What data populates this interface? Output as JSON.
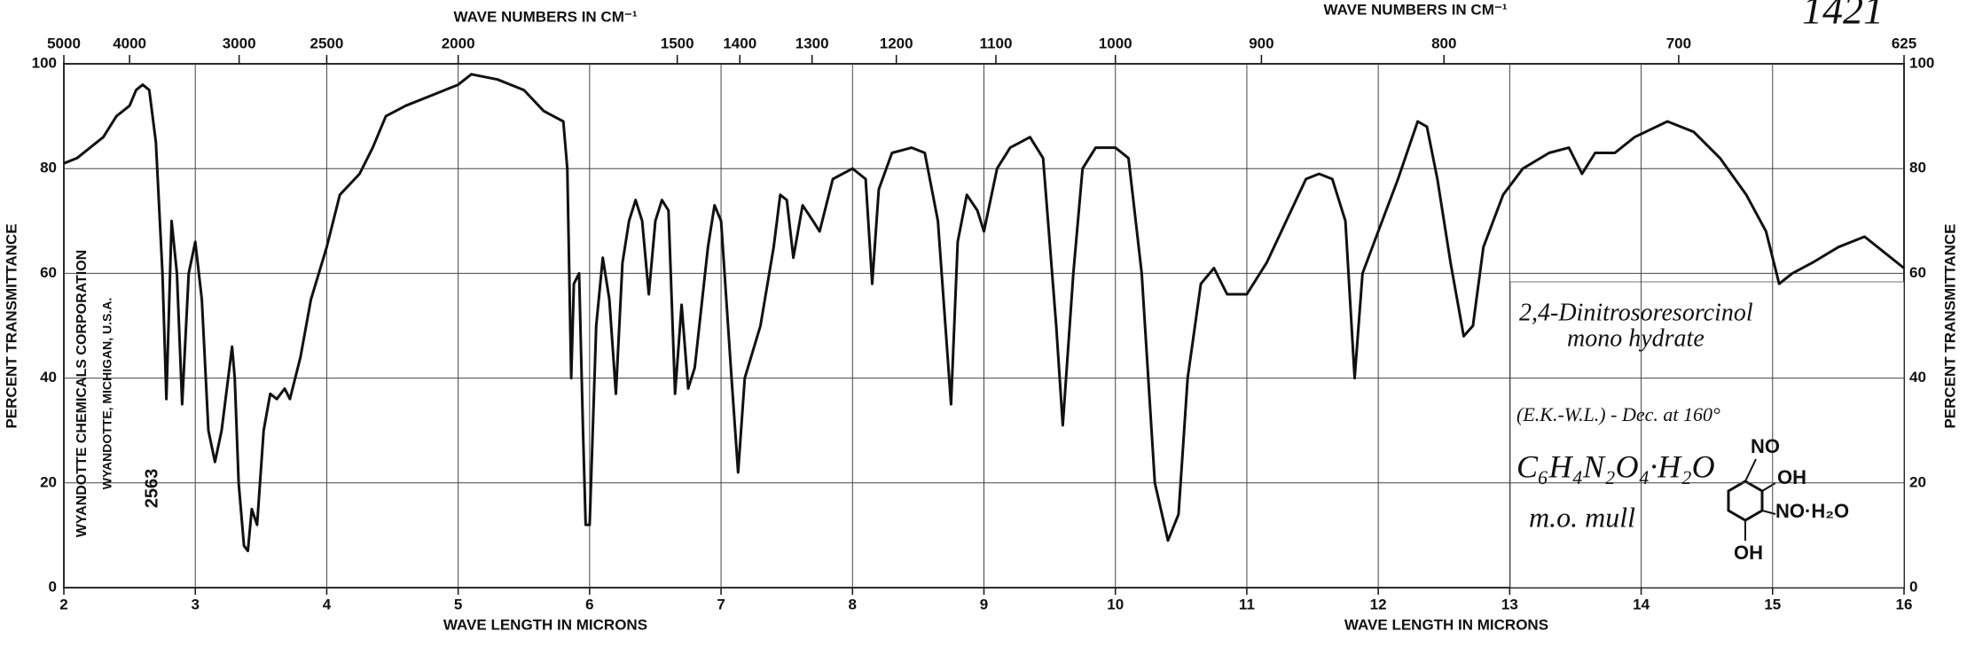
{
  "chart_data": {
    "type": "line",
    "color": "#111111",
    "x_label": "WAVE LENGTH IN MICRONS",
    "x2_label": "WAVE NUMBERS IN CM⁻¹",
    "y_label": "PERCENT TRANSMITTANCE",
    "xlim": [
      2,
      16
    ],
    "xticks": [
      2,
      3,
      4,
      5,
      6,
      7,
      8,
      9,
      10,
      11,
      12,
      13,
      14,
      15,
      16
    ],
    "x2ticks": [
      5000,
      4000,
      3000,
      2500,
      2000,
      1500,
      1400,
      1300,
      1200,
      1100,
      1000,
      900,
      800,
      700,
      625
    ],
    "ylim": [
      0,
      100
    ],
    "yticks": [
      0,
      20,
      40,
      60,
      80,
      100
    ],
    "grid": true,
    "x": [
      2.0,
      2.1,
      2.2,
      2.3,
      2.4,
      2.5,
      2.55,
      2.6,
      2.65,
      2.7,
      2.75,
      2.78,
      2.82,
      2.86,
      2.9,
      2.95,
      3.0,
      3.05,
      3.1,
      3.15,
      3.2,
      3.25,
      3.28,
      3.3,
      3.33,
      3.37,
      3.4,
      3.43,
      3.47,
      3.52,
      3.57,
      3.62,
      3.68,
      3.72,
      3.8,
      3.88,
      4.0,
      4.1,
      4.25,
      4.35,
      4.45,
      4.6,
      4.8,
      5.0,
      5.1,
      5.3,
      5.5,
      5.65,
      5.8,
      5.83,
      5.86,
      5.88,
      5.92,
      5.95,
      5.97,
      6.0,
      6.05,
      6.1,
      6.15,
      6.2,
      6.25,
      6.3,
      6.35,
      6.4,
      6.45,
      6.5,
      6.55,
      6.6,
      6.65,
      6.7,
      6.75,
      6.8,
      6.9,
      6.95,
      7.0,
      7.08,
      7.13,
      7.18,
      7.3,
      7.4,
      7.45,
      7.5,
      7.55,
      7.62,
      7.7,
      7.75,
      7.85,
      8.0,
      8.1,
      8.15,
      8.2,
      8.3,
      8.45,
      8.55,
      8.65,
      8.75,
      8.8,
      8.87,
      8.95,
      9.0,
      9.1,
      9.2,
      9.35,
      9.45,
      9.55,
      9.6,
      9.68,
      9.75,
      9.85,
      10.0,
      10.1,
      10.2,
      10.3,
      10.4,
      10.48,
      10.55,
      10.65,
      10.75,
      10.85,
      11.0,
      11.15,
      11.3,
      11.45,
      11.55,
      11.65,
      11.75,
      11.82,
      11.88,
      12.0,
      12.15,
      12.3,
      12.37,
      12.45,
      12.55,
      12.65,
      12.72,
      12.8,
      12.95,
      13.1,
      13.3,
      13.45,
      13.55,
      13.65,
      13.8,
      13.95,
      14.2,
      14.4,
      14.6,
      14.8,
      14.95,
      15.05,
      15.15,
      15.3,
      15.5,
      15.7,
      15.85,
      16.0
    ],
    "values": [
      81,
      82,
      84,
      86,
      90,
      92,
      95,
      96,
      95,
      85,
      60,
      36,
      70,
      60,
      35,
      60,
      66,
      55,
      30,
      24,
      30,
      40,
      46,
      40,
      20,
      8,
      7,
      15,
      12,
      30,
      37,
      36,
      38,
      36,
      44,
      55,
      65,
      75,
      79,
      84,
      90,
      92,
      94,
      96,
      98,
      97,
      95,
      91,
      89,
      80,
      40,
      58,
      60,
      30,
      12,
      12,
      50,
      63,
      55,
      37,
      62,
      70,
      74,
      70,
      56,
      70,
      74,
      72,
      37,
      54,
      38,
      42,
      65,
      73,
      70,
      40,
      22,
      40,
      50,
      65,
      75,
      74,
      63,
      73,
      70,
      68,
      78,
      80,
      78,
      58,
      76,
      83,
      84,
      83,
      70,
      35,
      66,
      75,
      72,
      68,
      80,
      84,
      86,
      82,
      50,
      31,
      60,
      80,
      84,
      84,
      82,
      60,
      20,
      9,
      14,
      40,
      58,
      61,
      56,
      56,
      62,
      70,
      78,
      79,
      78,
      70,
      40,
      60,
      68,
      78,
      89,
      88,
      78,
      62,
      48,
      50,
      65,
      75,
      80,
      83,
      84,
      79,
      83,
      83,
      86,
      89,
      87,
      82,
      75,
      68,
      58,
      60,
      62,
      65,
      67,
      64,
      61
    ],
    "annotations": [
      "1421",
      "2,4-Dinitrosoresorcinol",
      "mono hydrate",
      "(E.K.-W.L.) - Dec. at 160°",
      "C₆H₄N₂O₄·H₂O",
      "m.o. mull",
      "NO",
      "OH",
      "NO·H₂O",
      "OH",
      "WYANDOTTE CHEMICALS CORPORATION",
      "WYANDOTTE, MICHIGAN, U.S.A.",
      "2563"
    ]
  }
}
